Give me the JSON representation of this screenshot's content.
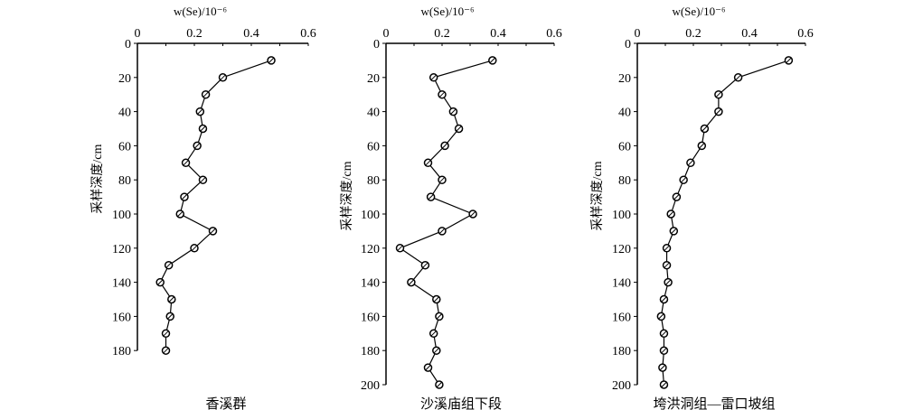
{
  "chart_data": [
    {
      "type": "line",
      "title": "香溪群",
      "xlabel": "w(Se)/10⁻⁶",
      "ylabel": "采样深度/cm",
      "xlim": [
        0,
        0.6
      ],
      "ylim": [
        0,
        180
      ],
      "xticks": [
        "0",
        "0.2",
        "0.4",
        "0.6"
      ],
      "yticks": [
        "0",
        "20",
        "40",
        "60",
        "80",
        "100",
        "120",
        "140",
        "160",
        "180"
      ],
      "depth": [
        10,
        20,
        30,
        40,
        50,
        60,
        70,
        80,
        90,
        100,
        110,
        120,
        130,
        140,
        150,
        160,
        170,
        180
      ],
      "se": [
        0.47,
        0.3,
        0.24,
        0.22,
        0.23,
        0.21,
        0.17,
        0.23,
        0.165,
        0.15,
        0.265,
        0.2,
        0.11,
        0.08,
        0.12,
        0.115,
        0.1,
        0.1
      ]
    },
    {
      "type": "line",
      "title": "沙溪庙组下段",
      "xlabel": "w(Se)/10⁻⁶",
      "ylabel": "采样深度/cm",
      "xlim": [
        0,
        0.6
      ],
      "ylim": [
        0,
        200
      ],
      "xticks": [
        "0",
        "0.2",
        "0.4",
        "0.6"
      ],
      "yticks": [
        "0",
        "20",
        "40",
        "60",
        "80",
        "100",
        "120",
        "140",
        "160",
        "180",
        "200"
      ],
      "depth": [
        10,
        20,
        30,
        40,
        50,
        60,
        70,
        80,
        90,
        100,
        110,
        120,
        130,
        140,
        150,
        160,
        170,
        180,
        190,
        200
      ],
      "se": [
        0.38,
        0.17,
        0.2,
        0.24,
        0.26,
        0.21,
        0.15,
        0.2,
        0.16,
        0.31,
        0.2,
        0.05,
        0.14,
        0.09,
        0.18,
        0.19,
        0.17,
        0.18,
        0.15,
        0.19
      ]
    },
    {
      "type": "line",
      "title": "垮洪洞组—雷口坡组",
      "xlabel": "w(Se)/10⁻⁶",
      "ylabel": "采样深度/cm",
      "xlim": [
        0,
        0.6
      ],
      "ylim": [
        0,
        200
      ],
      "xticks": [
        "0",
        "0.2",
        "0.4",
        "0.6"
      ],
      "yticks": [
        "0",
        "20",
        "40",
        "60",
        "80",
        "100",
        "120",
        "140",
        "160",
        "180",
        "200"
      ],
      "depth": [
        10,
        20,
        30,
        40,
        50,
        60,
        70,
        80,
        90,
        100,
        110,
        120,
        130,
        140,
        150,
        160,
        170,
        180,
        190,
        200
      ],
      "se": [
        0.54,
        0.36,
        0.29,
        0.29,
        0.24,
        0.23,
        0.19,
        0.165,
        0.14,
        0.12,
        0.13,
        0.105,
        0.105,
        0.11,
        0.095,
        0.085,
        0.095,
        0.095,
        0.09,
        0.095
      ]
    }
  ]
}
